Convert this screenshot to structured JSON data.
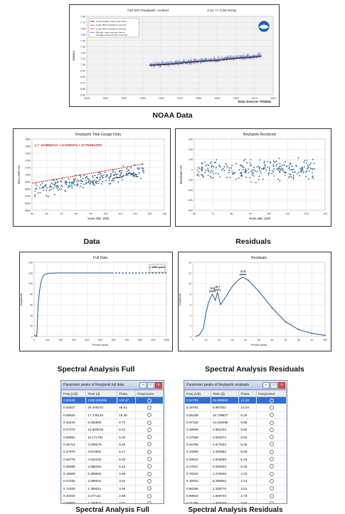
{
  "noaa": {
    "title": "010-001 Reykjavik, Iceland",
    "trend": "2.41 +/- 0.36 mm/yr",
    "ylabel": "Meters",
    "source": "Data Source: PSMSL",
    "legend": [
      "Linear Relative Sea Level Trend",
      "Upper 95% Confidence Interval",
      "Lower 95% Confidence Interval",
      "Monthly mean sea level with the average seasonal cycle removed"
    ],
    "caption": "NOAA Data"
  },
  "captions": {
    "data": "Data",
    "residuals": "Residuals",
    "spectral_full": "Spectral Analysis Full",
    "spectral_residuals": "Spectral Analysis Residuals",
    "table_full": "Spectral Analysis Full",
    "table_residuals": "Spectral Analysis Residuals"
  },
  "chart_data": [
    {
      "type": "line",
      "title": "010-001 Reykjavik, Iceland",
      "ylabel": "Meters",
      "xlabel": "",
      "x": [
        1957,
        1970,
        1980,
        1990,
        2000,
        2010,
        2020,
        2023
      ],
      "series": [
        {
          "name": "Linear Relative Sea Level Trend",
          "values": [
            6.99,
            7.01,
            7.04,
            7.06,
            7.08,
            7.11,
            7.13,
            7.14
          ]
        }
      ],
      "xticks": [
        "1920",
        "1930",
        "1940",
        "1950",
        "1960",
        "1970",
        "1980",
        "1990",
        "2000",
        "2010",
        "2020"
      ],
      "yticks": [
        "6.50",
        "6.60",
        "6.70",
        "6.80",
        "6.90",
        "7.00",
        "7.10",
        "7.20",
        "7.30",
        "7.40",
        "7.50",
        "7.60",
        "7.70",
        "7.80"
      ],
      "xlim": [
        1920,
        2030
      ],
      "ylim": [
        6.5,
        7.8
      ],
      "grid": true,
      "legend": "top-left"
    },
    {
      "type": "scatter",
      "title": "Reykjavik Tidal Gauge Data",
      "xlabel": "Years after 1900",
      "ylabel": "Sea Level mm",
      "annotation": "y = -0.0386471x² + 4.3145127x + 6,776.9514702",
      "fit": {
        "x": [
          50,
          60,
          70,
          80,
          90,
          100,
          110,
          120,
          125
        ],
        "values": [
          6880,
          6915,
          6950,
          6985,
          7020,
          7055,
          7090,
          7130,
          7150
        ]
      },
      "xticks": [
        "50",
        "60",
        "70",
        "80",
        "90",
        "100",
        "110",
        "120",
        "130",
        "140"
      ],
      "yticks": [
        "6500",
        "6600",
        "6700",
        "6800",
        "6900",
        "7000",
        "7100",
        "7200",
        "7300",
        "7400",
        "7500"
      ],
      "xlim": [
        50,
        140
      ],
      "ylim": [
        6500,
        7500
      ],
      "grid": true
    },
    {
      "type": "scatter",
      "title": "Reykjavik Residuals",
      "xlabel": "Years after 1900",
      "ylabel": "Residuals mm",
      "xticks": [
        "60",
        "70",
        "80",
        "90",
        "100",
        "110",
        "120",
        "130"
      ],
      "yticks": [
        "-400",
        "-300",
        "-200",
        "-100",
        "0",
        "100",
        "200",
        "300"
      ],
      "xlim": [
        50,
        135
      ],
      "ylim": [
        -400,
        300
      ],
      "grid": true
    },
    {
      "type": "line",
      "title": "Full Data",
      "xlabel": "Period years",
      "ylabel": "Amplitude",
      "annotation": "> 1000 years",
      "x": [
        0,
        10,
        20,
        30,
        40,
        50,
        60,
        70,
        80,
        90,
        100,
        120,
        140,
        160,
        180,
        200,
        250,
        300,
        400,
        500,
        600
      ],
      "series": [
        {
          "name": "",
          "values": [
            0,
            2,
            0,
            60,
            85,
            100,
            110,
            115,
            117,
            118,
            119,
            119.5,
            119.7,
            119.8,
            119.9,
            120,
            120,
            120,
            120,
            120,
            120
          ]
        }
      ],
      "xticks": [
        "0",
        "100",
        "200",
        "300",
        "400",
        "500",
        "600",
        "700",
        "800",
        "900",
        "1000"
      ],
      "yticks": [
        "0",
        "20",
        "40",
        "60",
        "80",
        "100",
        "120",
        "140"
      ],
      "xlim": [
        0,
        1000
      ],
      "ylim": [
        0,
        140
      ],
      "grid": true
    },
    {
      "type": "line",
      "title": "Residuals",
      "xlabel": "Period years",
      "ylabel": "Amplitude",
      "annotations": [
        {
          "text": "14.8 years",
          "x": 14.8,
          "y": 8.0
        },
        {
          "text": "18.7 years",
          "x": 18.7,
          "y": 8.3
        },
        {
          "text": "37.9 years",
          "x": 37.9,
          "y": 11.2
        }
      ],
      "x": [
        2,
        5,
        8,
        10,
        12,
        14.8,
        17,
        18.7,
        21,
        25,
        30,
        35,
        37.9,
        42,
        50,
        60,
        70,
        80,
        90,
        100
      ],
      "series": [
        {
          "name": "",
          "values": [
            0,
            0.3,
            1.5,
            4.5,
            6.5,
            8.0,
            6.8,
            8.3,
            6.0,
            7.5,
            9.5,
            10.8,
            11.2,
            10.6,
            8.5,
            5.4,
            2.8,
            1.3,
            0.6,
            0.2
          ]
        }
      ],
      "xticks": [
        "0",
        "10",
        "20",
        "30",
        "40",
        "50",
        "60",
        "70",
        "80",
        "90",
        "100"
      ],
      "yticks": [
        "0",
        "2",
        "4",
        "6",
        "8",
        "10",
        "12",
        "14"
      ],
      "xlim": [
        0,
        100
      ],
      "ylim": [
        0,
        14
      ],
      "grid": true
    },
    {
      "type": "table",
      "window_title": "Parameter peaks of Reykjavik full data",
      "columns": [
        "Freq (c/d)",
        "Time (d)",
        "Theta",
        "FreqCursor"
      ],
      "rows": [
        [
          "0.00126",
          "1000.000000",
          "119.47"
        ],
        [
          "0.02827",
          "35.345272",
          "46.51"
        ],
        [
          "0.05634",
          "17.749134",
          "19.39"
        ],
        [
          "0.16444",
          "6.084805",
          "8.72"
        ],
        [
          "0.07373",
          "13.563015",
          "6.41"
        ],
        [
          "0.08951",
          "11.171781",
          "5.34"
        ],
        [
          "0.28714",
          "3.008079",
          "6.92"
        ],
        [
          "0.27970",
          "3.574891",
          "5.17"
        ],
        [
          "0.28779",
          "4.912432",
          "5.93"
        ],
        [
          "0.36969",
          "2.586254",
          "5.42"
        ],
        [
          "0.15609",
          "6.359962",
          "3.69"
        ],
        [
          "0.47632",
          "2.098041",
          "3.61"
        ],
        [
          "0.71629",
          "1.396011",
          "3.06"
        ],
        [
          "0.30203",
          "3.277111",
          "2.88"
        ],
        [
          "0.56953",
          "1.755837",
          "2.51"
        ],
        [
          "0.16691",
          "5.951894",
          "2.86"
        ],
        [
          "0.22647",
          "4.420272",
          "2.65"
        ]
      ]
    },
    {
      "type": "table",
      "window_title": "Parameter peaks of Reykjavik residuals",
      "columns": [
        "Freq (c/d)",
        "Time (d)",
        "Theta",
        "FreqCursor"
      ],
      "rows": [
        [
          "0.02703",
          "36.999993",
          "12.46"
        ],
        [
          "0.16751",
          "5.967522",
          "10.34"
        ],
        [
          "0.05336",
          "18.739827",
          "9.25"
        ],
        [
          "0.07118",
          "14.048495",
          "8.68"
        ],
        [
          "0.38869",
          "2.582162",
          "8.62"
        ],
        [
          "0.27829",
          "3.593374",
          "8.52"
        ],
        [
          "0.26766",
          "3.677632",
          "8.46"
        ],
        [
          "0.23089",
          "4.330962",
          "6.09"
        ],
        [
          "0.20642",
          "4.844566",
          "5.16"
        ],
        [
          "0.47847",
          "2.090004",
          "5.03"
        ],
        [
          "0.78319",
          "1.276825",
          "4.10"
        ],
        [
          "0.18916",
          "5.286802",
          "4.13"
        ],
        [
          "0.86298",
          "1.158770",
          "3.81"
        ],
        [
          "0.59915",
          "1.669740",
          "3.78"
        ],
        [
          "0.71785",
          "1.393049",
          "3.54"
        ],
        [
          "0.56895",
          "1.757611",
          "3.55"
        ],
        [
          "0.45946",
          "2.176468",
          "3.52"
        ]
      ]
    }
  ]
}
